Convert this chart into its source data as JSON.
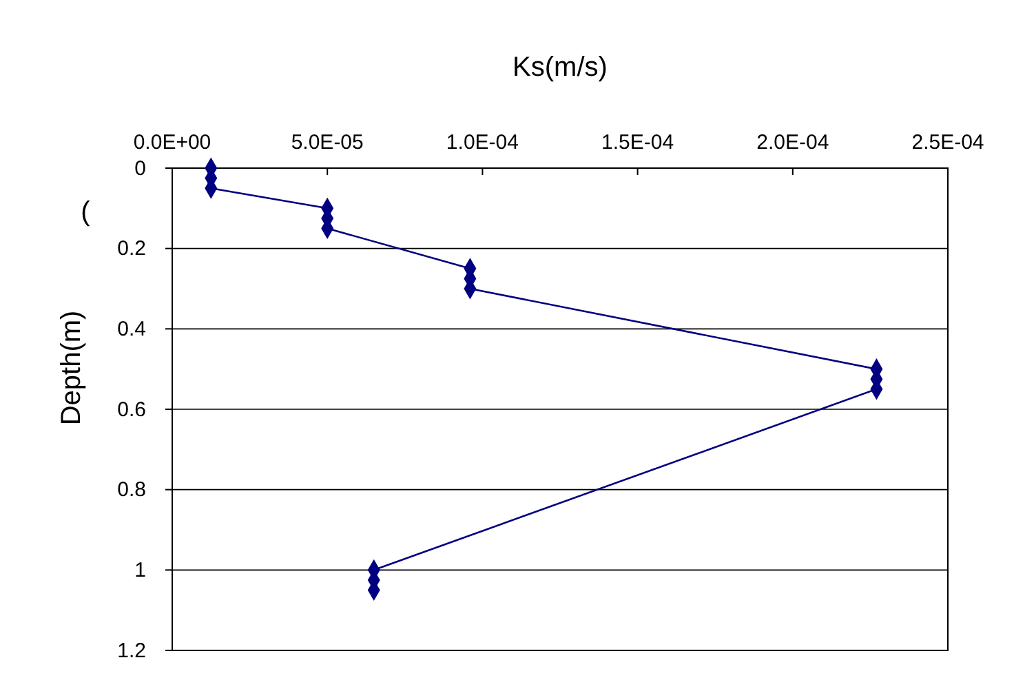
{
  "chart_data": {
    "type": "line",
    "xlabel": "Ks(m/s)",
    "ylabel": "Depth(m)",
    "annotations": [
      "("
    ],
    "xlim": [
      0,
      0.00025
    ],
    "xticks": [
      {
        "value": 0,
        "label": "0.0E+00"
      },
      {
        "value": 5e-05,
        "label": "5.0E-05"
      },
      {
        "value": 0.0001,
        "label": "1.0E-04"
      },
      {
        "value": 0.00015,
        "label": "1.5E-04"
      },
      {
        "value": 0.0002,
        "label": "2.0E-04"
      },
      {
        "value": 0.00025,
        "label": "2.5E-04"
      }
    ],
    "ylim": [
      1.2,
      0
    ],
    "yticks": [
      0,
      0.2,
      0.4,
      0.6,
      0.8,
      1,
      1.2
    ],
    "grid": "y",
    "marker": "diamond",
    "line_style": "solid",
    "series": [
      {
        "color": "#000080",
        "x": [
          1.25e-05,
          1.25e-05,
          1.25e-05,
          5e-05,
          5e-05,
          5e-05,
          9.6e-05,
          9.6e-05,
          9.6e-05,
          0.000227,
          0.000227,
          0.000227,
          6.5e-05,
          6.5e-05,
          6.5e-05
        ],
        "values": [
          0,
          0.025,
          0.05,
          0.1,
          0.125,
          0.15,
          0.25,
          0.275,
          0.3,
          0.5,
          0.525,
          0.55,
          1,
          1.025,
          1.05
        ]
      }
    ]
  }
}
